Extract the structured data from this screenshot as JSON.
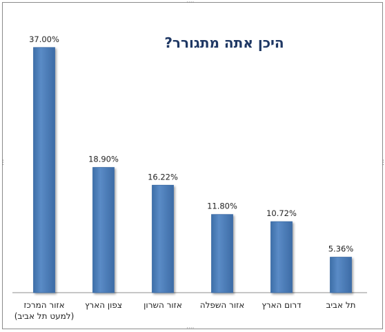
{
  "chart_data": {
    "type": "bar",
    "title": "היכן אתה מתגורר?",
    "categories": [
      "אזור המרכז (למעט תל אביב)",
      "צפון הארץ",
      "אזור השרון",
      "אזור השפלה",
      "דרום הארץ",
      "תל אביב"
    ],
    "category_lines": [
      [
        "אזור המרכז",
        "(למעט תל אביב)"
      ],
      [
        "צפון הארץ"
      ],
      [
        "אזור השרון"
      ],
      [
        "אזור השפלה"
      ],
      [
        "דרום הארץ"
      ],
      [
        "תל אביב"
      ]
    ],
    "values": [
      37.0,
      18.9,
      16.22,
      11.8,
      10.72,
      5.36
    ],
    "value_labels": [
      "37.00%",
      "18.90%",
      "16.22%",
      "11.80%",
      "10.72%",
      "5.36%"
    ],
    "ylim": [
      0,
      40
    ],
    "grid": false,
    "legend": "none",
    "bar_color": "#4f81bd",
    "bar_edge_color": "#3a6aa5",
    "title_color": "#1f3864"
  }
}
